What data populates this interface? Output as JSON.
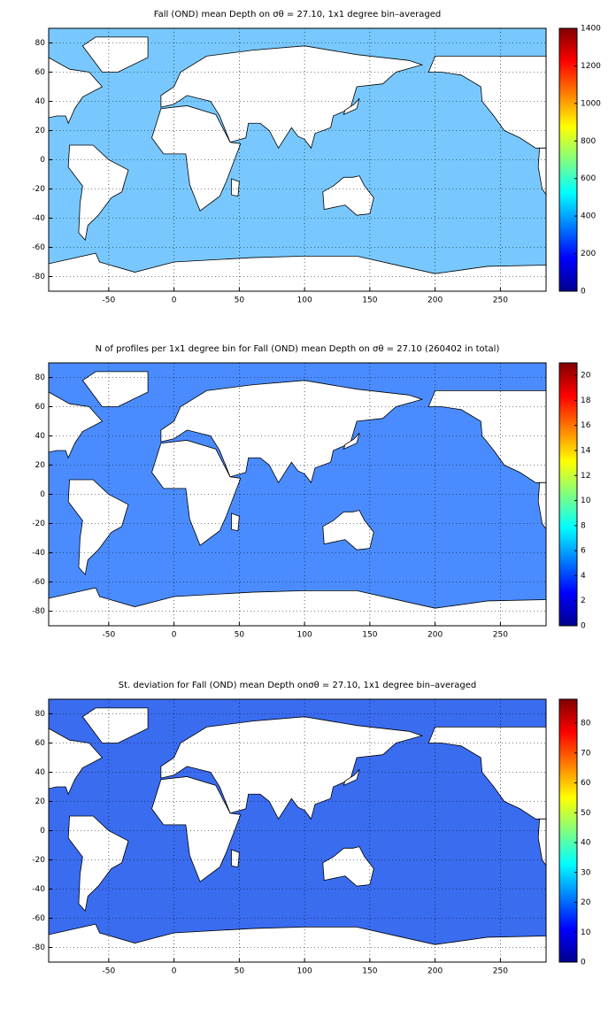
{
  "chart_data": [
    {
      "type": "map",
      "title": "Fall (OND) mean Depth on σθ = 27.10, 1x1 degree bin–averaged",
      "xlim": [
        -96,
        285
      ],
      "xticks": [
        -50,
        0,
        50,
        100,
        150,
        200,
        250
      ],
      "ylim": [
        -90,
        90
      ],
      "yticks": [
        -80,
        -60,
        -40,
        -20,
        0,
        20,
        40,
        60,
        80
      ],
      "grid": true,
      "clim": [
        0,
        1400
      ],
      "cticks": [
        0,
        200,
        400,
        600,
        800,
        1000,
        1200,
        1400
      ],
      "colormap": "jet"
    },
    {
      "type": "map",
      "title": "N of profiles per 1x1 degree bin for Fall (OND) mean Depth on σθ = 27.10 (260402 in total)",
      "xlim": [
        -96,
        285
      ],
      "xticks": [
        -50,
        0,
        50,
        100,
        150,
        200,
        250
      ],
      "ylim": [
        -90,
        90
      ],
      "yticks": [
        -80,
        -60,
        -40,
        -20,
        0,
        20,
        40,
        60,
        80
      ],
      "grid": true,
      "clim": [
        0,
        21
      ],
      "cticks": [
        0,
        2,
        4,
        6,
        8,
        10,
        12,
        14,
        16,
        18,
        20
      ],
      "colormap": "jet"
    },
    {
      "type": "map",
      "title": "St. deviation for Fall (OND) mean Depth onσθ = 27.10, 1x1 degree bin–averaged",
      "xlim": [
        -96,
        285
      ],
      "xticks": [
        -50,
        0,
        50,
        100,
        150,
        200,
        250
      ],
      "ylim": [
        -90,
        90
      ],
      "yticks": [
        -80,
        -60,
        -40,
        -20,
        0,
        20,
        40,
        60,
        80
      ],
      "grid": true,
      "clim": [
        0,
        88
      ],
      "cticks": [
        0,
        10,
        20,
        30,
        40,
        50,
        60,
        70,
        80
      ],
      "colormap": "jet"
    }
  ]
}
